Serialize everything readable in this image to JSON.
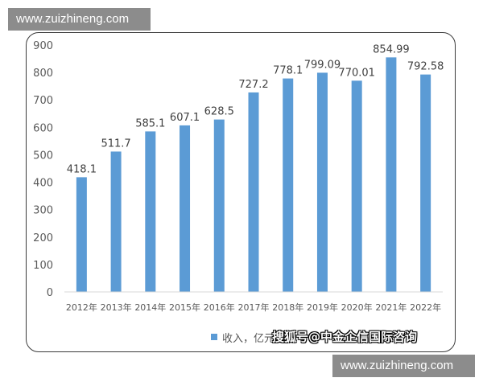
{
  "watermark_text": "www.zuizhineng.com",
  "source_overlay": "搜狐号@中金企信国际咨询",
  "colors": {
    "bar": "#5b9bd5",
    "axis_text": "#595959",
    "grid": "#d9d9d9"
  },
  "chart_data": {
    "type": "bar",
    "categories": [
      "2012年",
      "2013年",
      "2014年",
      "2015年",
      "2016年",
      "2017年",
      "2018年",
      "2019年",
      "2020年",
      "2021年",
      "2022年"
    ],
    "series": [
      {
        "name": "收入，亿元",
        "values": [
          418.1,
          511.7,
          585.1,
          607.1,
          628.5,
          727.2,
          778.1,
          799.09,
          770.01,
          854.99,
          792.58
        ],
        "labels": [
          "418.1",
          "511.7",
          "585.1",
          "607.1",
          "628.5",
          "727.2",
          "778.1",
          "799.09",
          "770.01",
          "854.99",
          "792.58"
        ]
      }
    ],
    "legend_text": "收入，亿元",
    "legend_position": "bottom",
    "ylim": [
      0,
      900
    ],
    "yticks": [
      0,
      100,
      200,
      300,
      400,
      500,
      600,
      700,
      800,
      900
    ],
    "grid": false
  }
}
